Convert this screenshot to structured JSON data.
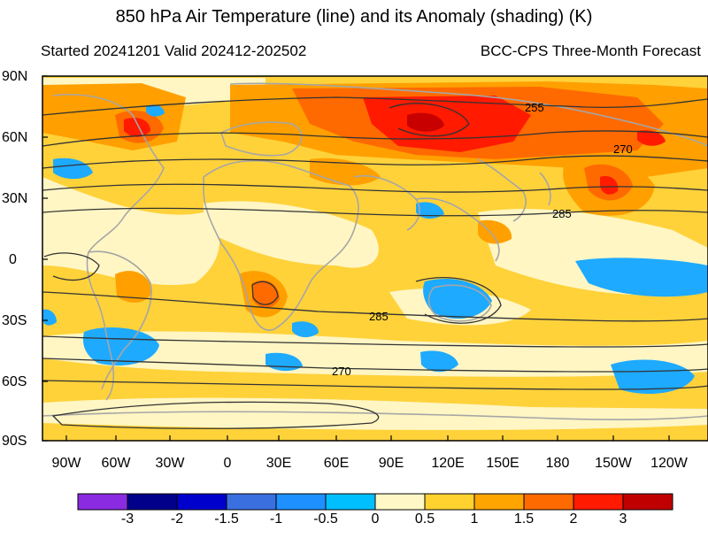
{
  "header": {
    "title": "850 hPa Air Temperature (line) and its Anomaly (shading) (K)",
    "started": "Started 20241201  Valid 202412-202502",
    "source": "BCC-CPS Three-Month Forecast"
  },
  "axes": {
    "lat_labels": [
      "90N",
      "60N",
      "30N",
      "0",
      "30S",
      "60S",
      "90S"
    ],
    "lon_labels": [
      "90W",
      "60W",
      "30W",
      "0",
      "30E",
      "60E",
      "90E",
      "120E",
      "150E",
      "180",
      "150W",
      "120W"
    ]
  },
  "contours": {
    "labels": [
      "255",
      "270",
      "285",
      "285",
      "270"
    ]
  },
  "colorbar": {
    "labels": [
      "-3",
      "-2",
      "-1.5",
      "-1",
      "-0.5",
      "0",
      "0.5",
      "1",
      "1.5",
      "2",
      "3"
    ],
    "colors": [
      "#8a2be2",
      "#00008b",
      "#0000cd",
      "#3a6fe0",
      "#1e90ff",
      "#00bfff",
      "#fff8c6",
      "#ffd230",
      "#ffa500",
      "#ff6a00",
      "#ff1a00",
      "#c00000"
    ]
  },
  "colors": {
    "warm_light": "#fff6c4",
    "warm_mid": "#ffd23a",
    "warm_strong": "#ffa000",
    "hot": "#ff6a00",
    "very_hot": "#ff1a00",
    "extreme": "#c80000",
    "cool": "#1eaaff",
    "coast": "#a6a6a6",
    "contour": "#333333"
  }
}
